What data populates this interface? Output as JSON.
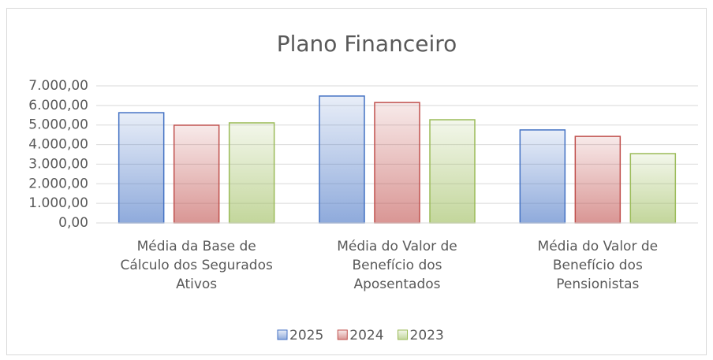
{
  "chart_data": {
    "type": "bar",
    "title": "Plano Financeiro",
    "categories": [
      "Média da Base de Cálculo dos Segurados Ativos",
      "Média do Valor de Benefício dos Aposentados",
      "Média do Valor de Benefício dos Pensionistas"
    ],
    "series": [
      {
        "name": "2025",
        "color": "#4472c4",
        "values": [
          5630,
          6480,
          4750
        ]
      },
      {
        "name": "2024",
        "color": "#c0504d",
        "values": [
          4990,
          6150,
          4420
        ]
      },
      {
        "name": "2023",
        "color": "#9bbb59",
        "values": [
          5110,
          5270,
          3540
        ]
      }
    ],
    "ylim": [
      0,
      7000
    ],
    "yticks": [
      {
        "value": 0,
        "label": "0,00"
      },
      {
        "value": 1000,
        "label": "1.000,00"
      },
      {
        "value": 2000,
        "label": "2.000,00"
      },
      {
        "value": 3000,
        "label": "3.000,00"
      },
      {
        "value": 4000,
        "label": "4.000,00"
      },
      {
        "value": 5000,
        "label": "5.000,00"
      },
      {
        "value": 6000,
        "label": "6.000,00"
      },
      {
        "value": 7000,
        "label": "7.000,00"
      }
    ],
    "grid": true,
    "legend": "bottom"
  }
}
